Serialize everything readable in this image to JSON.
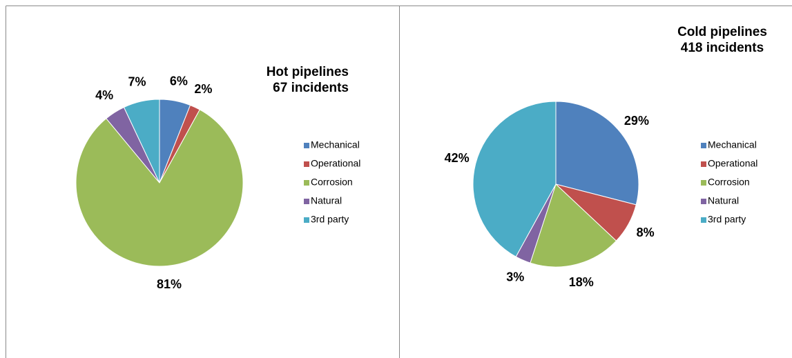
{
  "chart_data": [
    {
      "type": "pie",
      "title": "Hot pipelines",
      "subtitle": "67 incidents",
      "categories": [
        "Mechanical",
        "Operational",
        "Corrosion",
        "Natural",
        "3rd party"
      ],
      "values": [
        6,
        2,
        81,
        4,
        7
      ],
      "value_labels": [
        "6%",
        "2%",
        "81%",
        "4%",
        "7%"
      ],
      "colors": [
        "#4f81bd",
        "#c0504d",
        "#9bbb59",
        "#8064a2",
        "#4bacc6"
      ]
    },
    {
      "type": "pie",
      "title": "Cold pipelines",
      "subtitle": "418 incidents",
      "categories": [
        "Mechanical",
        "Operational",
        "Corrosion",
        "Natural",
        "3rd party"
      ],
      "values": [
        29,
        8,
        18,
        3,
        42
      ],
      "value_labels": [
        "29%",
        "8%",
        "18%",
        "3%",
        "42%"
      ],
      "colors": [
        "#4f81bd",
        "#c0504d",
        "#9bbb59",
        "#8064a2",
        "#4bacc6"
      ]
    }
  ]
}
